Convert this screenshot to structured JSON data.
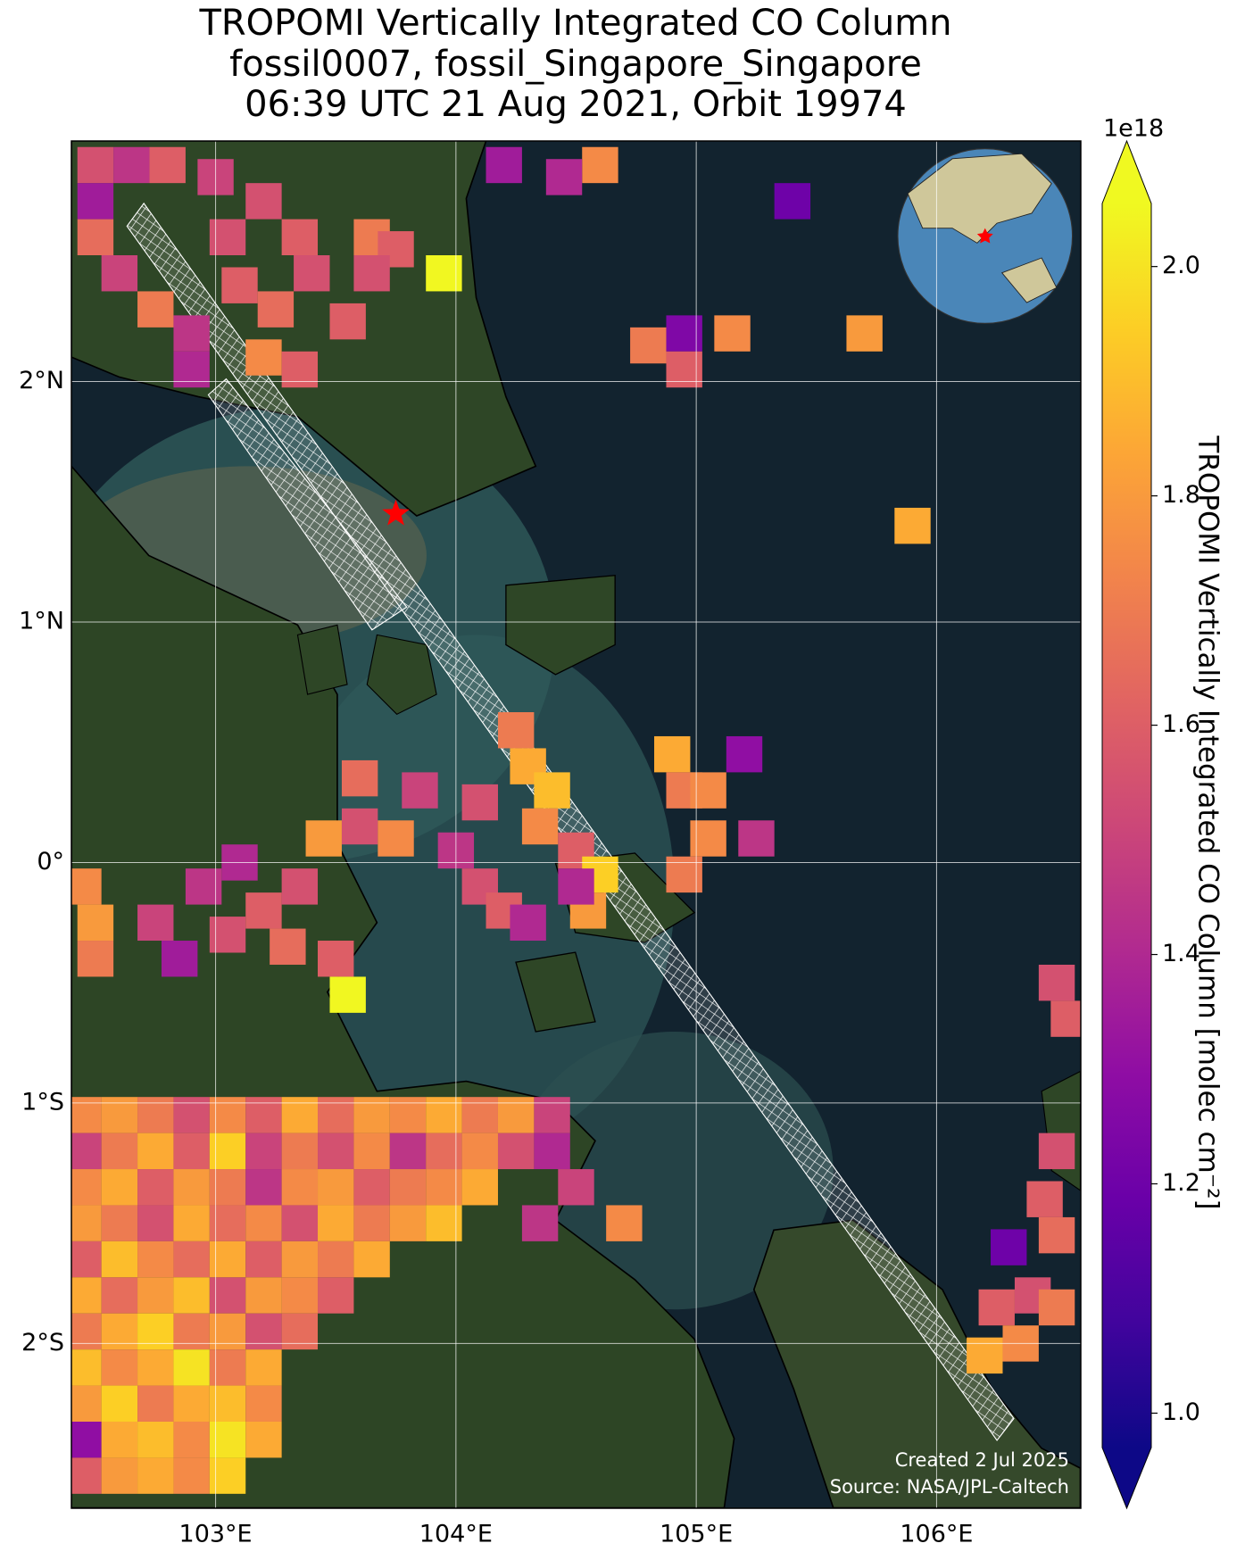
{
  "chart_data": {
    "type": "map",
    "title": [
      "TROPOMI Vertically Integrated CO Column",
      "fossil0007, fossil_Singapore_Singapore",
      "06:39 UTC 21 Aug 2021, Orbit 19974"
    ],
    "xlim": [
      102.4,
      106.6
    ],
    "ylim": [
      -2.685,
      3.0
    ],
    "xticks": [
      {
        "value": 103,
        "label": "103°E"
      },
      {
        "value": 104,
        "label": "104°E"
      },
      {
        "value": 105,
        "label": "105°E"
      },
      {
        "value": 106,
        "label": "106°E"
      }
    ],
    "yticks": [
      {
        "value": 2,
        "label": "2°N"
      },
      {
        "value": 1,
        "label": "1°N"
      },
      {
        "value": 0,
        "label": "0°"
      },
      {
        "value": -1,
        "label": "1°S"
      },
      {
        "value": -2,
        "label": "2°S"
      }
    ],
    "grid": true,
    "colormap": "plasma",
    "clim": [
      0.97,
      2.055
    ],
    "colorbar_ticks": [
      {
        "value": 1,
        "label": "1.0"
      },
      1.2,
      1.4,
      1.6,
      1.8,
      {
        "value": 2,
        "label": "2.0"
      }
    ],
    "colorbar_scale": "1e18",
    "colorbar_label": "TROPOMI Vertically Integrated CO Column [molec cm⁻²]",
    "credits": [
      "Created 2 Jul 2025",
      "Source: NASA/JPL-Caltech"
    ],
    "site": {
      "lon": 103.75,
      "lat": 1.45
    },
    "cells": [
      [
        102.5,
        2.9,
        1.55
      ],
      [
        102.65,
        2.9,
        1.45
      ],
      [
        102.8,
        2.9,
        1.6
      ],
      [
        103.0,
        2.85,
        1.5
      ],
      [
        103.35,
        2.6,
        1.6
      ],
      [
        103.2,
        2.75,
        1.55
      ],
      [
        102.5,
        2.6,
        1.65
      ],
      [
        102.6,
        2.45,
        1.5
      ],
      [
        102.75,
        2.3,
        1.7
      ],
      [
        102.9,
        2.2,
        1.45
      ],
      [
        103.1,
        2.4,
        1.6
      ],
      [
        103.25,
        2.3,
        1.65
      ],
      [
        103.4,
        2.45,
        1.55
      ],
      [
        103.2,
        2.1,
        1.75
      ],
      [
        103.35,
        2.05,
        1.6
      ],
      [
        102.9,
        2.05,
        1.4
      ],
      [
        102.5,
        2.75,
        1.35
      ],
      [
        103.05,
        2.6,
        1.55
      ],
      [
        103.65,
        2.6,
        1.7
      ],
      [
        103.75,
        2.55,
        1.6
      ],
      [
        103.65,
        2.45,
        1.55
      ],
      [
        103.95,
        2.45,
        2.05
      ],
      [
        103.55,
        2.25,
        1.6
      ],
      [
        104.2,
        2.9,
        1.35
      ],
      [
        104.6,
        2.9,
        1.75
      ],
      [
        104.45,
        2.85,
        1.4
      ],
      [
        105.4,
        2.75,
        1.2
      ],
      [
        104.95,
        2.2,
        1.25
      ],
      [
        104.8,
        2.15,
        1.7
      ],
      [
        104.95,
        2.05,
        1.6
      ],
      [
        105.15,
        2.2,
        1.75
      ],
      [
        105.7,
        2.2,
        1.8
      ],
      [
        105.9,
        1.4,
        1.85
      ],
      [
        104.25,
        0.55,
        1.7
      ],
      [
        104.3,
        0.4,
        1.85
      ],
      [
        104.4,
        0.3,
        1.9
      ],
      [
        104.35,
        0.15,
        1.75
      ],
      [
        104.5,
        0.05,
        1.6
      ],
      [
        104.6,
        -0.05,
        1.95
      ],
      [
        104.55,
        -0.2,
        1.8
      ],
      [
        104.1,
        0.25,
        1.55
      ],
      [
        104.0,
        0.05,
        1.45
      ],
      [
        104.1,
        -0.1,
        1.55
      ],
      [
        104.2,
        -0.2,
        1.6
      ],
      [
        104.3,
        -0.25,
        1.4
      ],
      [
        103.85,
        0.3,
        1.5
      ],
      [
        104.5,
        -0.1,
        1.4
      ],
      [
        104.9,
        0.45,
        1.85
      ],
      [
        104.95,
        0.3,
        1.7
      ],
      [
        105.05,
        0.3,
        1.75
      ],
      [
        105.2,
        0.45,
        1.3
      ],
      [
        105.05,
        0.1,
        1.75
      ],
      [
        104.95,
        -0.05,
        1.7
      ],
      [
        105.25,
        0.1,
        1.45
      ],
      [
        103.6,
        0.15,
        1.55
      ],
      [
        103.45,
        0.1,
        1.8
      ],
      [
        103.1,
        0.0,
        1.4
      ],
      [
        102.95,
        -0.1,
        1.45
      ],
      [
        102.75,
        -0.25,
        1.5
      ],
      [
        102.85,
        -0.4,
        1.35
      ],
      [
        103.05,
        -0.3,
        1.55
      ],
      [
        103.2,
        -0.2,
        1.6
      ],
      [
        103.35,
        -0.1,
        1.55
      ],
      [
        103.3,
        -0.35,
        1.65
      ],
      [
        103.5,
        -0.4,
        1.6
      ],
      [
        103.55,
        -0.55,
        2.05
      ],
      [
        102.5,
        -0.25,
        1.8
      ],
      [
        102.5,
        -0.4,
        1.7
      ],
      [
        103.6,
        0.35,
        1.65
      ],
      [
        103.75,
        0.1,
        1.75
      ],
      [
        102.45,
        -0.1,
        1.75
      ],
      [
        106.5,
        -0.5,
        1.55
      ],
      [
        106.55,
        -0.65,
        1.6
      ],
      [
        106.5,
        -1.2,
        1.55
      ],
      [
        106.45,
        -1.4,
        1.6
      ],
      [
        106.5,
        -1.55,
        1.65
      ],
      [
        106.3,
        -1.6,
        1.2
      ],
      [
        106.4,
        -1.8,
        1.55
      ],
      [
        106.25,
        -1.85,
        1.6
      ],
      [
        106.35,
        -2.0,
        1.75
      ],
      [
        106.5,
        -1.85,
        1.7
      ],
      [
        106.2,
        -2.05,
        1.85
      ],
      [
        104.7,
        -1.5,
        1.75
      ],
      [
        104.5,
        -1.35,
        1.5
      ],
      [
        104.35,
        -1.5,
        1.45
      ],
      [
        102.45,
        -1.05,
        1.75
      ],
      [
        102.6,
        -1.05,
        1.8
      ],
      [
        102.75,
        -1.05,
        1.7
      ],
      [
        102.9,
        -1.05,
        1.55
      ],
      [
        103.05,
        -1.05,
        1.75
      ],
      [
        103.2,
        -1.05,
        1.6
      ],
      [
        103.35,
        -1.05,
        1.85
      ],
      [
        103.5,
        -1.05,
        1.65
      ],
      [
        103.65,
        -1.05,
        1.8
      ],
      [
        103.8,
        -1.05,
        1.75
      ],
      [
        103.95,
        -1.05,
        1.85
      ],
      [
        104.1,
        -1.05,
        1.7
      ],
      [
        104.25,
        -1.05,
        1.8
      ],
      [
        104.4,
        -1.05,
        1.5
      ],
      [
        102.45,
        -1.2,
        1.5
      ],
      [
        102.6,
        -1.2,
        1.7
      ],
      [
        102.75,
        -1.2,
        1.85
      ],
      [
        102.9,
        -1.2,
        1.6
      ],
      [
        103.05,
        -1.2,
        1.95
      ],
      [
        103.2,
        -1.2,
        1.5
      ],
      [
        103.35,
        -1.2,
        1.7
      ],
      [
        103.5,
        -1.2,
        1.55
      ],
      [
        103.65,
        -1.2,
        1.75
      ],
      [
        103.8,
        -1.2,
        1.45
      ],
      [
        103.95,
        -1.2,
        1.65
      ],
      [
        104.1,
        -1.2,
        1.75
      ],
      [
        104.25,
        -1.2,
        1.55
      ],
      [
        104.4,
        -1.2,
        1.4
      ],
      [
        102.45,
        -1.35,
        1.75
      ],
      [
        102.6,
        -1.35,
        1.85
      ],
      [
        102.75,
        -1.35,
        1.6
      ],
      [
        102.9,
        -1.35,
        1.8
      ],
      [
        103.05,
        -1.35,
        1.7
      ],
      [
        103.2,
        -1.35,
        1.45
      ],
      [
        103.35,
        -1.35,
        1.75
      ],
      [
        103.5,
        -1.35,
        1.8
      ],
      [
        103.65,
        -1.35,
        1.6
      ],
      [
        103.8,
        -1.35,
        1.7
      ],
      [
        103.95,
        -1.35,
        1.75
      ],
      [
        104.1,
        -1.35,
        1.85
      ],
      [
        102.45,
        -1.5,
        1.8
      ],
      [
        102.6,
        -1.5,
        1.7
      ],
      [
        102.75,
        -1.5,
        1.55
      ],
      [
        102.9,
        -1.5,
        1.85
      ],
      [
        103.05,
        -1.5,
        1.65
      ],
      [
        103.2,
        -1.5,
        1.75
      ],
      [
        103.35,
        -1.5,
        1.55
      ],
      [
        103.5,
        -1.5,
        1.85
      ],
      [
        103.65,
        -1.5,
        1.7
      ],
      [
        103.8,
        -1.5,
        1.8
      ],
      [
        103.95,
        -1.5,
        1.9
      ],
      [
        102.45,
        -1.65,
        1.6
      ],
      [
        102.6,
        -1.65,
        1.9
      ],
      [
        102.75,
        -1.65,
        1.75
      ],
      [
        102.9,
        -1.65,
        1.65
      ],
      [
        103.05,
        -1.65,
        1.85
      ],
      [
        103.2,
        -1.65,
        1.6
      ],
      [
        103.35,
        -1.65,
        1.8
      ],
      [
        103.5,
        -1.65,
        1.7
      ],
      [
        103.65,
        -1.65,
        1.85
      ],
      [
        102.45,
        -1.8,
        1.85
      ],
      [
        102.6,
        -1.8,
        1.65
      ],
      [
        102.75,
        -1.8,
        1.8
      ],
      [
        102.9,
        -1.8,
        1.9
      ],
      [
        103.05,
        -1.8,
        1.55
      ],
      [
        103.2,
        -1.8,
        1.8
      ],
      [
        103.35,
        -1.8,
        1.75
      ],
      [
        103.5,
        -1.8,
        1.6
      ],
      [
        102.45,
        -1.95,
        1.7
      ],
      [
        102.6,
        -1.95,
        1.85
      ],
      [
        102.75,
        -1.95,
        1.95
      ],
      [
        102.9,
        -1.95,
        1.7
      ],
      [
        103.05,
        -1.95,
        1.8
      ],
      [
        103.2,
        -1.95,
        1.55
      ],
      [
        103.35,
        -1.95,
        1.65
      ],
      [
        102.45,
        -2.1,
        1.9
      ],
      [
        102.6,
        -2.1,
        1.75
      ],
      [
        102.75,
        -2.1,
        1.85
      ],
      [
        102.9,
        -2.1,
        2.0
      ],
      [
        103.05,
        -2.1,
        1.7
      ],
      [
        103.2,
        -2.1,
        1.85
      ],
      [
        102.45,
        -2.25,
        1.8
      ],
      [
        102.6,
        -2.25,
        1.95
      ],
      [
        102.75,
        -2.25,
        1.7
      ],
      [
        102.9,
        -2.25,
        1.85
      ],
      [
        103.05,
        -2.25,
        1.9
      ],
      [
        103.2,
        -2.25,
        1.75
      ],
      [
        102.45,
        -2.4,
        1.3
      ],
      [
        102.6,
        -2.4,
        1.85
      ],
      [
        102.75,
        -2.4,
        1.9
      ],
      [
        102.9,
        -2.4,
        1.75
      ],
      [
        103.05,
        -2.4,
        2.0
      ],
      [
        103.2,
        -2.4,
        1.85
      ],
      [
        102.45,
        -2.55,
        1.6
      ],
      [
        102.6,
        -2.55,
        1.8
      ],
      [
        102.75,
        -2.55,
        1.85
      ],
      [
        102.9,
        -2.55,
        1.75
      ],
      [
        103.05,
        -2.55,
        1.95
      ]
    ]
  }
}
